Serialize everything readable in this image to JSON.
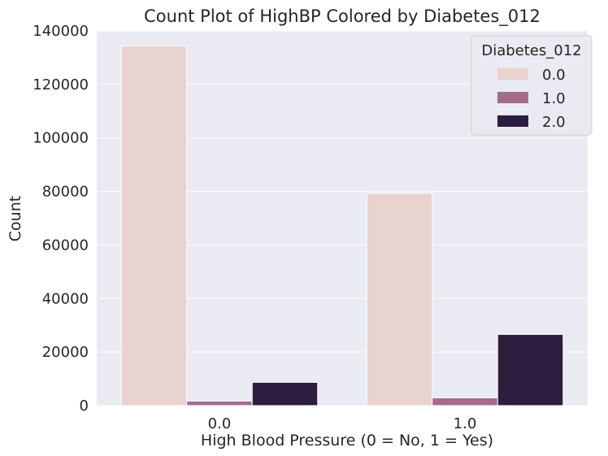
{
  "chart_data": {
    "type": "bar",
    "title": "Count Plot of HighBP Colored by Diabetes_012",
    "xlabel": "High Blood Pressure (0 = No, 1 = Yes)",
    "ylabel": "Count",
    "categories": [
      "0.0",
      "1.0"
    ],
    "series": [
      {
        "name": "0.0",
        "values": [
          134400,
          79300
        ],
        "color": "#e8d3cf"
      },
      {
        "name": "1.0",
        "values": [
          1700,
          2900
        ],
        "color": "#a36c8c"
      },
      {
        "name": "2.0",
        "values": [
          8700,
          26600
        ],
        "color": "#2d1e3e"
      }
    ],
    "ylim": [
      0,
      140000
    ],
    "yticks": [
      0,
      20000,
      40000,
      60000,
      80000,
      100000,
      120000,
      140000
    ],
    "ytick_labels": [
      "0",
      "20000",
      "40000",
      "60000",
      "80000",
      "100000",
      "120000",
      "140000"
    ],
    "legend": {
      "title": "Diabetes_012",
      "placement": "top-right"
    },
    "grid": true,
    "style": {
      "plot_background": "#eaeaf2",
      "grid_color": "#ffffff",
      "text_color": "#262626"
    }
  }
}
